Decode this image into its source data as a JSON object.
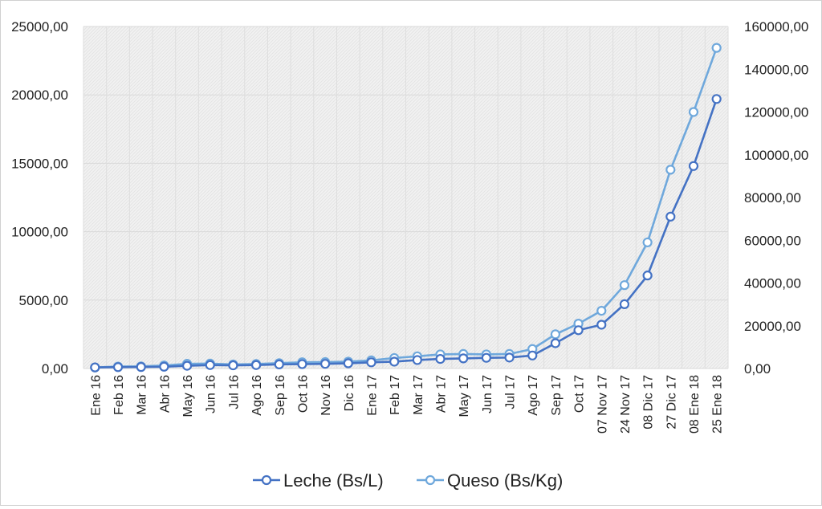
{
  "chart_data": {
    "type": "line",
    "categories": [
      "Ene 16",
      "Feb 16",
      "Mar 16",
      "Abr 16",
      "May 16",
      "Jun 16",
      "Jul 16",
      "Ago 16",
      "Sep 16",
      "Oct 16",
      "Nov 16",
      "Dic 16",
      "Ene 17",
      "Feb 17",
      "Mar 17",
      "Abr 17",
      "May 17",
      "Jun 17",
      "Jul 17",
      "Ago 17",
      "Sep 17",
      "Oct 17",
      "07 Nov 17",
      "24 Nov 17",
      "08 Dic 17",
      "27 Dic 17",
      "08 Ene 18",
      "25 Ene 18"
    ],
    "series": [
      {
        "name": "Leche (Bs/L)",
        "axis": "left",
        "color": "#4472C4",
        "values": [
          80,
          100,
          110,
          130,
          200,
          250,
          230,
          250,
          300,
          320,
          340,
          380,
          450,
          500,
          620,
          700,
          740,
          780,
          800,
          950,
          1850,
          2800,
          3200,
          4700,
          6800,
          11100,
          14800,
          19700
        ]
      },
      {
        "name": "Queso (Bs/Kg)",
        "axis": "right",
        "color": "#6FA8DC",
        "values": [
          500,
          900,
          1000,
          1400,
          2200,
          2300,
          1900,
          2100,
          2500,
          2900,
          3000,
          3200,
          3800,
          4900,
          5700,
          6600,
          6800,
          6600,
          6800,
          9100,
          16000,
          21000,
          27000,
          39000,
          59000,
          93000,
          120000,
          150000
        ]
      }
    ],
    "y_left": {
      "min": 0,
      "max": 25000,
      "ticks": [
        "0,00",
        "5000,00",
        "10000,00",
        "15000,00",
        "20000,00",
        "25000,00"
      ]
    },
    "y_right": {
      "min": 0,
      "max": 160000,
      "ticks": [
        "0,00",
        "20000,00",
        "40000,00",
        "60000,00",
        "80000,00",
        "100000,00",
        "120000,00",
        "140000,00",
        "160000,00"
      ]
    },
    "grid": true,
    "legend_position": "bottom"
  }
}
